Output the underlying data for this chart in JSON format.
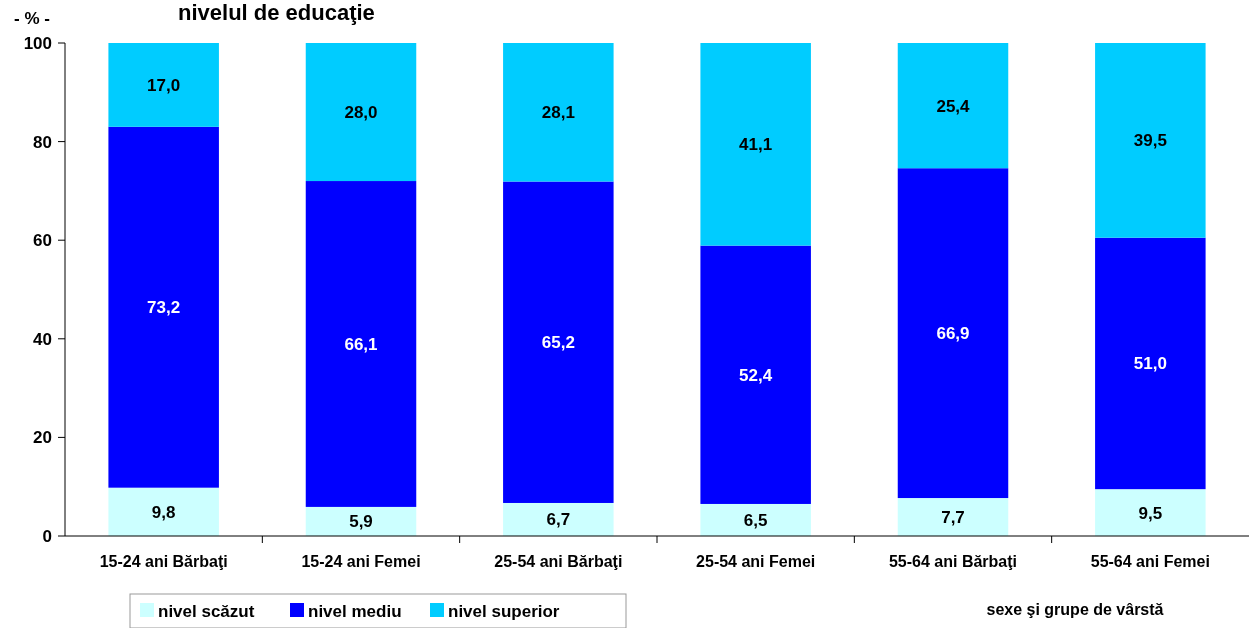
{
  "chart_data": {
    "type": "bar",
    "title": "nivelul de educaţie",
    "ylabel": "- % -",
    "xlabel": "sexe şi grupe de vârstă",
    "stacked": true,
    "categories": [
      "15-24 ani Bărbaţi",
      "15-24 ani Femei",
      "25-54 ani Bărbaţi",
      "25-54 ani Femei",
      "55-64 ani Bărbaţi",
      "55-64 ani Femei"
    ],
    "series": [
      {
        "name": "nivel scăzut",
        "color": "#ccffff",
        "values": [
          9.8,
          5.9,
          6.7,
          6.5,
          7.7,
          9.5
        ],
        "value_labels": [
          "9,8",
          "5,9",
          "6,7",
          "6,5",
          "7,7",
          "9,5"
        ]
      },
      {
        "name": "nivel mediu",
        "color": "#0000ff",
        "values": [
          73.2,
          66.1,
          65.2,
          52.4,
          66.9,
          51.0
        ],
        "value_labels": [
          "73,2",
          "66,1",
          "65,2",
          "52,4",
          "66,9",
          "51,0"
        ]
      },
      {
        "name": "nivel superior",
        "color": "#00ccff",
        "values": [
          17.0,
          28.0,
          28.1,
          41.1,
          25.4,
          39.5
        ],
        "value_labels": [
          "17,0",
          "28,0",
          "28,1",
          "41,1",
          "25,4",
          "39,5"
        ]
      }
    ],
    "ylim": [
      0,
      100
    ],
    "yticks": [
      0,
      20,
      40,
      60,
      80,
      100
    ],
    "grid": false,
    "legend": "bottom left"
  }
}
